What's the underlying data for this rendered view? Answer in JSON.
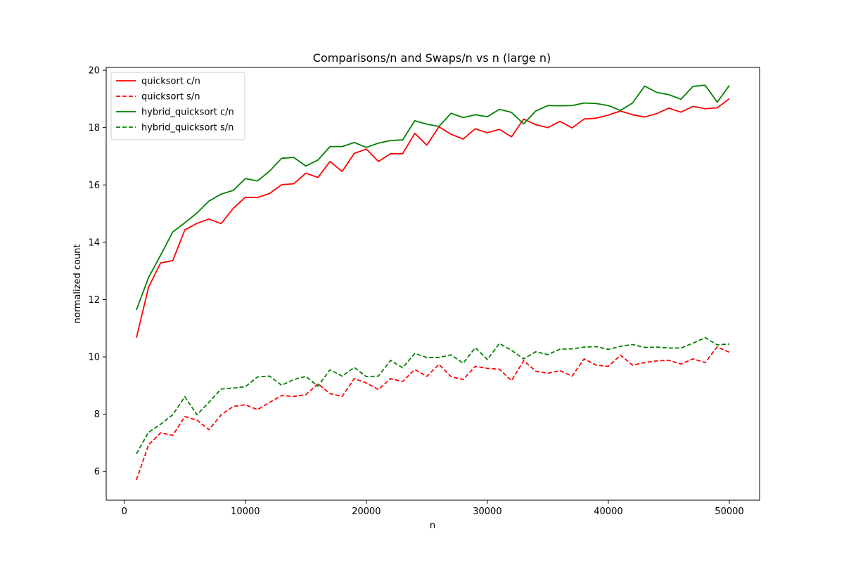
{
  "chart_data": {
    "type": "line",
    "title": "Comparisons/n and Swaps/n vs n (large n)",
    "xlabel": "n",
    "ylabel": "normalized count",
    "xlim": [
      -1500,
      52500
    ],
    "ylim": [
      5.0,
      20.1
    ],
    "xticks": [
      0,
      10000,
      20000,
      30000,
      40000,
      50000
    ],
    "yticks": [
      6,
      8,
      10,
      12,
      14,
      16,
      18,
      20
    ],
    "grid": false,
    "legend": "top-left",
    "x": [
      1000,
      2000,
      3000,
      4000,
      5000,
      6000,
      7000,
      8000,
      9000,
      10000,
      11000,
      12000,
      13000,
      14000,
      15000,
      16000,
      17000,
      18000,
      19000,
      20000,
      21000,
      22000,
      23000,
      24000,
      25000,
      26000,
      27000,
      28000,
      29000,
      30000,
      31000,
      32000,
      33000,
      34000,
      35000,
      36000,
      37000,
      38000,
      39000,
      40000,
      41000,
      42000,
      43000,
      44000,
      45000,
      46000,
      47000,
      48000,
      49000,
      50000
    ],
    "series": [
      {
        "name": "quicksort c/n",
        "color": "#ff0000",
        "dash": "solid",
        "values": [
          10.67,
          12.43,
          13.28,
          13.36,
          14.43,
          14.66,
          14.81,
          14.65,
          15.18,
          15.57,
          15.56,
          15.7,
          16.01,
          16.04,
          16.41,
          16.26,
          16.82,
          16.47,
          17.1,
          17.25,
          16.82,
          17.09,
          17.09,
          17.8,
          17.39,
          18.03,
          17.77,
          17.6,
          17.96,
          17.82,
          17.94,
          17.68,
          18.3,
          18.1,
          18.0,
          18.22,
          17.99,
          18.3,
          18.33,
          18.44,
          18.58,
          18.45,
          18.37,
          18.49,
          18.68,
          18.54,
          18.74,
          18.66,
          18.69,
          19.01
        ]
      },
      {
        "name": "quicksort s/n",
        "color": "#ff0000",
        "dash": "dashed",
        "values": [
          5.71,
          6.93,
          7.35,
          7.26,
          7.92,
          7.79,
          7.46,
          7.98,
          8.27,
          8.33,
          8.16,
          8.41,
          8.65,
          8.62,
          8.68,
          9.06,
          8.72,
          8.62,
          9.24,
          9.09,
          8.86,
          9.24,
          9.14,
          9.56,
          9.32,
          9.74,
          9.31,
          9.21,
          9.67,
          9.6,
          9.57,
          9.17,
          9.87,
          9.5,
          9.43,
          9.52,
          9.33,
          9.93,
          9.71,
          9.67,
          10.06,
          9.71,
          9.8,
          9.86,
          9.88,
          9.75,
          9.93,
          9.8,
          10.35,
          10.16
        ]
      },
      {
        "name": "hybrid_quicksort c/n",
        "color": "#008000",
        "dash": "solid",
        "values": [
          11.64,
          12.77,
          13.55,
          14.36,
          14.68,
          15.02,
          15.44,
          15.68,
          15.81,
          16.22,
          16.14,
          16.48,
          16.93,
          16.96,
          16.66,
          16.87,
          17.34,
          17.34,
          17.48,
          17.31,
          17.46,
          17.55,
          17.57,
          18.24,
          18.12,
          18.04,
          18.5,
          18.35,
          18.45,
          18.38,
          18.64,
          18.53,
          18.13,
          18.58,
          18.77,
          18.76,
          18.77,
          18.86,
          18.84,
          18.77,
          18.6,
          18.86,
          19.45,
          19.23,
          19.15,
          18.99,
          19.44,
          19.48,
          18.89,
          19.47
        ]
      },
      {
        "name": "hybrid_quicksort s/n",
        "color": "#008000",
        "dash": "dashed",
        "values": [
          6.62,
          7.37,
          7.65,
          7.98,
          8.61,
          7.98,
          8.42,
          8.88,
          8.91,
          8.96,
          9.3,
          9.33,
          9.01,
          9.21,
          9.32,
          8.98,
          9.55,
          9.33,
          9.63,
          9.31,
          9.33,
          9.88,
          9.62,
          10.12,
          9.98,
          9.98,
          10.07,
          9.78,
          10.32,
          9.91,
          10.47,
          10.23,
          9.93,
          10.18,
          10.08,
          10.27,
          10.28,
          10.34,
          10.36,
          10.26,
          10.37,
          10.43,
          10.33,
          10.34,
          10.31,
          10.31,
          10.48,
          10.67,
          10.42,
          10.45
        ]
      }
    ]
  }
}
